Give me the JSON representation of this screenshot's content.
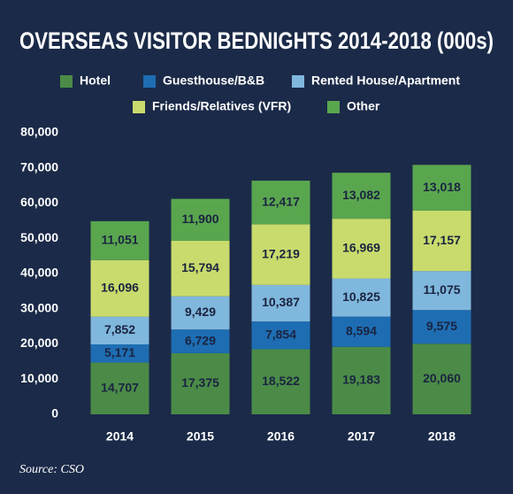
{
  "chart_data": {
    "type": "stacked-bar",
    "title": "OVERSEAS VISITOR BEDNIGHTS 2014-2018 (000s)",
    "categories": [
      "2014",
      "2015",
      "2016",
      "2017",
      "2018"
    ],
    "series": [
      {
        "name": "Hotel",
        "color": "#4b8b47",
        "values": [
          14707,
          17375,
          18522,
          19183,
          20060
        ],
        "value_labels": [
          "14,707",
          "17,375",
          "18,522",
          "19,183",
          "20,060"
        ]
      },
      {
        "name": "Guesthouse/B&B",
        "color": "#1e6db3",
        "values": [
          5171,
          6729,
          7854,
          8594,
          9575
        ],
        "value_labels": [
          "5,171",
          "6,729",
          "7,854",
          "8,594",
          "9,575"
        ]
      },
      {
        "name": "Rented House/Apartment",
        "color": "#80b7dd",
        "values": [
          7852,
          9429,
          10387,
          10825,
          11075
        ],
        "value_labels": [
          "7,852",
          "9,429",
          "10,387",
          "10,825",
          "11,075"
        ]
      },
      {
        "name": "Friends/Relatives (VFR)",
        "color": "#c9db6c",
        "values": [
          16096,
          15794,
          17219,
          16969,
          17157
        ],
        "value_labels": [
          "16,096",
          "15,794",
          "17,219",
          "16,969",
          "17,157"
        ]
      },
      {
        "name": "Other",
        "color": "#5aa64f",
        "values": [
          11051,
          11900,
          12417,
          13082,
          13018
        ],
        "value_labels": [
          "11,051",
          "11,900",
          "12,417",
          "13,082",
          "13,018"
        ]
      }
    ],
    "ylim": [
      0,
      80000
    ],
    "yticks": [
      0,
      {
        "value": 10000,
        "label": "10,000"
      },
      {
        "value": 20000,
        "label": "20,000"
      },
      {
        "value": 30000,
        "label": "30,000"
      },
      {
        "value": 40000,
        "label": "40,000"
      },
      {
        "value": 50000,
        "label": "50,000"
      },
      {
        "value": 60000,
        "label": "60,000"
      },
      {
        "value": 70000,
        "label": "70,000"
      },
      {
        "value": 80000,
        "label": "80,000"
      }
    ],
    "source": "Source: CSO"
  }
}
